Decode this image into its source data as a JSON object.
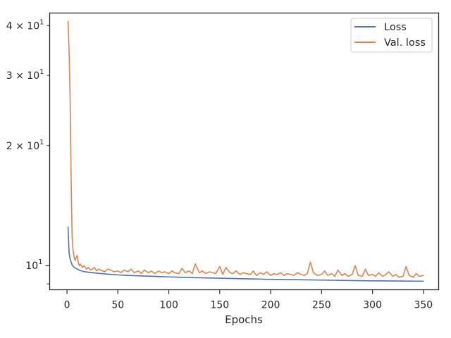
{
  "chart_data": {
    "type": "line",
    "title": "",
    "xlabel": "Epochs",
    "ylabel": "",
    "yscale": "log",
    "xlim": [
      -17,
      365
    ],
    "ylim": [
      8.7,
      43
    ],
    "x_ticks": [
      0,
      50,
      100,
      150,
      200,
      250,
      300,
      350
    ],
    "y_major_ticks": [
      10
    ],
    "y_major_tick_labels": [
      "10^1"
    ],
    "y_minor_ticks": [
      9,
      20,
      30,
      40
    ],
    "y_minor_tick_labels": [
      "",
      "2×10^1",
      "3×10^1",
      "4×10^1"
    ],
    "grid": false,
    "legend_position": "top-right",
    "series": [
      {
        "name": "Loss",
        "color": "#4c72b0",
        "x": [
          1,
          2,
          3,
          5,
          7,
          10,
          13,
          17,
          22,
          30,
          40,
          50,
          60,
          75,
          90,
          100,
          125,
          150,
          175,
          200,
          225,
          250,
          275,
          300,
          325,
          350
        ],
        "y": [
          12.5,
          10.8,
          10.4,
          10.05,
          9.9,
          9.8,
          9.72,
          9.66,
          9.62,
          9.57,
          9.52,
          9.48,
          9.45,
          9.42,
          9.39,
          9.37,
          9.33,
          9.3,
          9.27,
          9.24,
          9.22,
          9.2,
          9.18,
          9.16,
          9.15,
          9.14
        ]
      },
      {
        "name": "Val. loss",
        "color": "#dd8452",
        "x": [
          1,
          2,
          3,
          4,
          5,
          6,
          7,
          8,
          9,
          10,
          11,
          12,
          13,
          15,
          17,
          19,
          21,
          23,
          25,
          27,
          29,
          31,
          33,
          35,
          37,
          40,
          43,
          46,
          50,
          53,
          56,
          60,
          63,
          66,
          70,
          73,
          76,
          80,
          83,
          86,
          90,
          93,
          96,
          100,
          103,
          106,
          110,
          113,
          116,
          120,
          123,
          126,
          130,
          133,
          136,
          140,
          143,
          146,
          150,
          153,
          156,
          160,
          163,
          166,
          170,
          173,
          176,
          180,
          183,
          186,
          190,
          193,
          196,
          200,
          203,
          206,
          210,
          213,
          216,
          220,
          223,
          226,
          230,
          233,
          236,
          239,
          242,
          246,
          250,
          253,
          256,
          260,
          263,
          266,
          270,
          273,
          276,
          280,
          283,
          286,
          290,
          293,
          296,
          300,
          303,
          306,
          310,
          313,
          316,
          320,
          323,
          326,
          330,
          333,
          336,
          340,
          343,
          346,
          350
        ],
        "y": [
          41.0,
          35.0,
          27.0,
          17.0,
          11.8,
          10.9,
          10.5,
          10.3,
          10.5,
          10.6,
          10.2,
          10.0,
          10.1,
          9.9,
          10.0,
          9.8,
          9.9,
          9.75,
          9.8,
          9.9,
          9.7,
          9.8,
          9.75,
          9.7,
          9.65,
          9.8,
          9.75,
          9.65,
          9.7,
          9.6,
          9.75,
          9.65,
          9.8,
          9.6,
          9.7,
          9.55,
          9.75,
          9.6,
          9.7,
          9.55,
          9.7,
          9.6,
          9.65,
          9.55,
          9.7,
          9.6,
          9.55,
          9.85,
          9.6,
          9.7,
          9.55,
          10.1,
          9.6,
          9.7,
          9.55,
          9.65,
          9.6,
          9.55,
          9.95,
          9.5,
          9.9,
          9.6,
          9.55,
          9.7,
          9.5,
          9.6,
          9.55,
          9.5,
          9.7,
          9.45,
          9.6,
          9.5,
          9.65,
          9.45,
          9.55,
          9.5,
          9.6,
          9.45,
          9.55,
          9.5,
          9.45,
          9.6,
          9.5,
          9.45,
          9.55,
          10.2,
          9.6,
          9.45,
          9.5,
          9.7,
          9.45,
          9.55,
          9.4,
          9.75,
          9.45,
          9.55,
          9.4,
          9.5,
          10.0,
          9.45,
          9.4,
          9.8,
          9.45,
          9.5,
          9.4,
          9.6,
          9.4,
          9.5,
          9.65,
          9.4,
          9.5,
          9.35,
          9.4,
          9.95,
          9.45,
          9.35,
          9.55,
          9.4,
          9.45
        ]
      }
    ]
  },
  "legend": {
    "items": [
      {
        "label": "Loss",
        "color": "#4c72b0"
      },
      {
        "label": "Val. loss",
        "color": "#dd8452"
      }
    ]
  }
}
